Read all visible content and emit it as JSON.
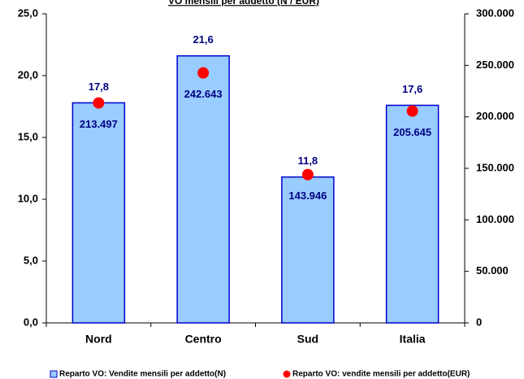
{
  "chart_data": {
    "type": "bar",
    "title": "VO mensili per addetto (N / EUR)",
    "categories": [
      "Nord",
      "Centro",
      "Sud",
      "Italia"
    ],
    "series": [
      {
        "name": "Reparto VO: Vendite mensili per addetto(N)",
        "type": "bar",
        "color": "#99ccff",
        "values": [
          17.8,
          21.6,
          11.8,
          17.6
        ],
        "value_labels": [
          "17,8",
          "21,6",
          "11,8",
          "17,6"
        ]
      },
      {
        "name": "Reparto VO: vendite mensili per addetto(EUR)",
        "type": "scatter",
        "axis": "y2",
        "color": "#ff0000",
        "values": [
          213497,
          242643,
          143946,
          205645
        ],
        "value_labels": [
          "213.497",
          "242.643",
          "143.946",
          "205.645"
        ]
      }
    ],
    "ylim": [
      0,
      25
    ],
    "yticks": [
      {
        "value": 0,
        "label": "0,0"
      },
      {
        "value": 5,
        "label": "5,0"
      },
      {
        "value": 10,
        "label": "10,0"
      },
      {
        "value": 15,
        "label": "15,0"
      },
      {
        "value": 20,
        "label": "20,0"
      },
      {
        "value": 25,
        "label": "25,0"
      }
    ],
    "y2lim": [
      0,
      300000
    ],
    "y2ticks": [
      0,
      {
        "value": 50000,
        "label": "50.000"
      },
      {
        "value": 100000,
        "label": "100.000"
      },
      {
        "value": 150000,
        "label": "150.000"
      },
      {
        "value": 200000,
        "label": "200.000"
      },
      {
        "value": 250000,
        "label": "250.000"
      },
      {
        "value": 300000,
        "label": "300.000"
      }
    ],
    "legend": "bottom"
  }
}
